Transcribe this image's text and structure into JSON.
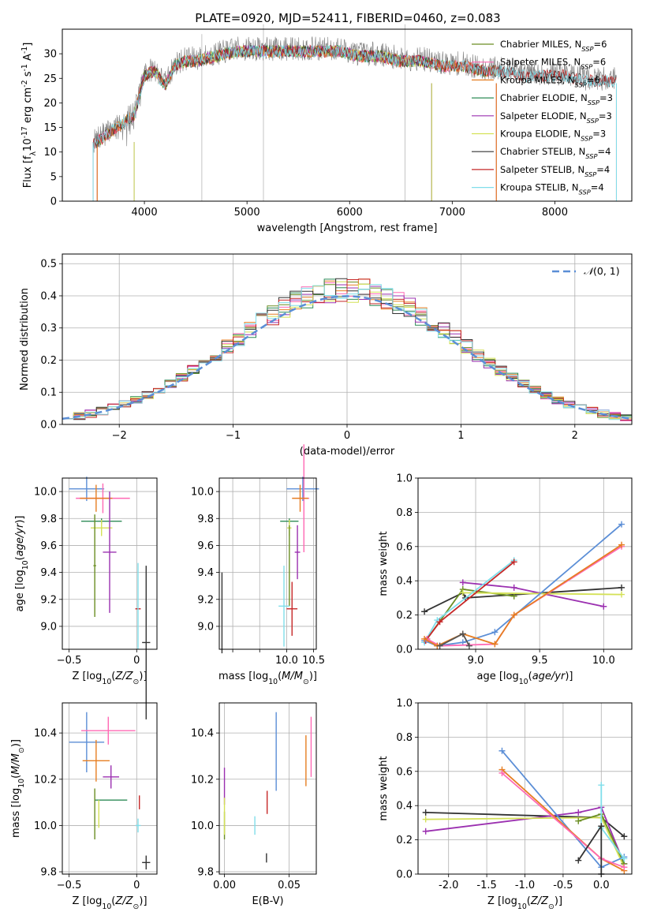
{
  "figure": {
    "title": "PLATE=0920, MJD=52411, FIBERID=0460, z=0.083"
  },
  "chart_data": [
    {
      "id": "spectrum",
      "type": "line",
      "xlabel": "wavelength [Angstrom, rest frame]",
      "ylabel": "Flux [f$_\\lambda$10$^{-17}$ erg cm$^{-2}$ s$^{-1}$ A$^{-1}$]",
      "ylabel_parts": [
        "Flux [f",
        "λ",
        "10",
        "−17",
        " erg cm",
        "−2",
        " s",
        "−1",
        " A",
        "−1",
        "]"
      ],
      "xlim": [
        3200,
        8750
      ],
      "ylim": [
        0,
        35
      ],
      "xticks": [
        4000,
        5000,
        6000,
        7000,
        8000
      ],
      "yticks": [
        0,
        5,
        10,
        15,
        20,
        25,
        30
      ],
      "grid": false,
      "legend_position": "upper right",
      "data_x": [
        3500,
        3700,
        3900,
        4000,
        4100,
        4200,
        4300,
        4400,
        4500,
        4700,
        4900,
        5100,
        5300,
        5500,
        5700,
        5900,
        6100,
        6300,
        6500,
        6700,
        6900,
        7100,
        7300,
        7500,
        7700,
        7900,
        8100,
        8300,
        8500
      ],
      "data_y": [
        12,
        15,
        18,
        26,
        27,
        24,
        28,
        29,
        29,
        30,
        31,
        31,
        31,
        31,
        31,
        31,
        30,
        30,
        29,
        29,
        28,
        28,
        27,
        27,
        26,
        26,
        26,
        25,
        25
      ],
      "models": [
        {
          "name": "Chabrier MILES, N$_{SSP}$=6",
          "label": "Chabrier MILES, N",
          "sub": "SSP",
          "suffix": "=6",
          "color": "#6b8e23",
          "start": 3540,
          "end": 7430
        },
        {
          "name": "Salpeter MILES, N$_{SSP}$=6",
          "label": "Salpeter MILES, N",
          "sub": "SSP",
          "suffix": "=6",
          "color": "#ff69b4",
          "start": 3540,
          "end": 7430
        },
        {
          "name": "Kroupa MILES, N$_{SSP}$=6",
          "label": "Kroupa MILES, N",
          "sub": "SSP",
          "suffix": "=6",
          "color": "#e67e22",
          "start": 3540,
          "end": 7430
        },
        {
          "name": "Chabrier ELODIE, N$_{SSP}$=3",
          "label": "Chabrier ELODIE, N",
          "sub": "SSP",
          "suffix": "=3",
          "color": "#2e8b57",
          "start": 3900,
          "end": 6800
        },
        {
          "name": "Salpeter ELODIE, N$_{SSP}$=3",
          "label": "Salpeter ELODIE, N",
          "sub": "SSP",
          "suffix": "=3",
          "color": "#9b30b0",
          "start": 3900,
          "end": 6800
        },
        {
          "name": "Kroupa ELODIE, N$_{SSP}$=3",
          "label": "Kroupa ELODIE, N",
          "sub": "SSP",
          "suffix": "=3",
          "color": "#d4e157",
          "start": 3900,
          "end": 6800
        },
        {
          "name": "Chabrier STELIB, N$_{SSP}$=4",
          "label": "Chabrier STELIB, N",
          "sub": "SSP",
          "suffix": "=4",
          "color": "#333333",
          "start": 3500,
          "end": 8600
        },
        {
          "name": "Salpeter STELIB, N$_{SSP}$=4",
          "label": "Salpeter STELIB, N",
          "sub": "SSP",
          "suffix": "=4",
          "color": "#c62828",
          "start": 3500,
          "end": 8600
        },
        {
          "name": "Kroupa STELIB, N$_{SSP}$=4",
          "label": "Kroupa STELIB, N",
          "sub": "SSP",
          "suffix": "=4",
          "color": "#80deea",
          "start": 3500,
          "end": 8600
        }
      ]
    },
    {
      "id": "residual_hist",
      "type": "histogram",
      "xlabel": "(data-model)/error",
      "ylabel": "Normed distribution",
      "xlim": [
        -2.5,
        2.5
      ],
      "ylim": [
        0,
        0.53
      ],
      "xticks": [
        -2,
        -1,
        0,
        1,
        2
      ],
      "yticks": [
        0.0,
        0.1,
        0.2,
        0.3,
        0.4,
        0.5
      ],
      "grid": true,
      "legend_position": "upper right",
      "reference_curve": {
        "label": "$\\mathcal{N}(0,1)$",
        "label_parts": [
          "𝒩",
          "(0, 1)"
        ],
        "color": "#5b8ed6",
        "style": "dashed",
        "mean": 0,
        "sigma": 1
      },
      "bin_width": 0.1,
      "series": [
        {
          "color": "#6b8e23"
        },
        {
          "color": "#ff69b4"
        },
        {
          "color": "#e67e22"
        },
        {
          "color": "#2e8b57"
        },
        {
          "color": "#9b30b0"
        },
        {
          "color": "#d4e157"
        },
        {
          "color": "#333333"
        },
        {
          "color": "#c62828"
        },
        {
          "color": "#80deea"
        }
      ]
    },
    {
      "id": "age_vs_Z",
      "type": "errorbar",
      "xlabel": "Z [log$_{10}$($Z/Z_\\odot$)]",
      "ylabel": "age  [log$_{10}$($age/yr$)]",
      "xlim": [
        -0.55,
        0.15
      ],
      "ylim": [
        8.83,
        10.1
      ],
      "xticks": [
        -0.5,
        0.0
      ],
      "yticks": [
        9.0,
        9.2,
        9.4,
        9.6,
        9.8,
        10.0
      ],
      "grid": true,
      "points": [
        {
          "color": "#5b8ed6",
          "x": -0.37,
          "xerr": 0.13,
          "y": 10.02,
          "yerr": 0.09
        },
        {
          "color": "#ff69b4",
          "x": -0.25,
          "xerr": 0.2,
          "y": 9.95,
          "yerr": 0.11
        },
        {
          "color": "#e67e22",
          "x": -0.3,
          "xerr": 0.12,
          "y": 9.95,
          "yerr": 0.1
        },
        {
          "color": "#2e8b57",
          "x": -0.26,
          "xerr": 0.15,
          "y": 9.78,
          "yerr": 0.02
        },
        {
          "color": "#d4e157",
          "x": -0.26,
          "xerr": 0.08,
          "y": 9.73,
          "yerr": 0.06
        },
        {
          "color": "#9b30b0",
          "x": -0.2,
          "xerr": 0.05,
          "y": 9.55,
          "yerr": 0.45
        },
        {
          "color": "#6b8e23",
          "x": -0.31,
          "xerr": 0.01,
          "y": 9.45,
          "yerr": 0.38
        },
        {
          "color": "#c62828",
          "x": 0.01,
          "xerr": 0.02,
          "y": 9.13,
          "yerr": 0.0
        },
        {
          "color": "#80deea",
          "x": 0.01,
          "xerr": 0.0,
          "y": 9.15,
          "yerr": 0.32
        },
        {
          "color": "#333333",
          "x": 0.07,
          "xerr": 0.03,
          "y": 8.88,
          "yerr": 0.57
        }
      ]
    },
    {
      "id": "age_vs_mass",
      "type": "errorbar",
      "xlabel": "mass [log$_{10}$($M/M_\\odot$)]",
      "xlim": [
        8.75,
        10.55
      ],
      "ylim": [
        8.83,
        10.1
      ],
      "xticks": [
        9.0,
        9.5,
        10.0,
        10.5
      ],
      "xtick_labels": [
        "",
        "",
        "10.0",
        "10.5"
      ],
      "yticks": [
        9.0,
        9.2,
        9.4,
        9.6,
        9.8,
        10.0
      ],
      "grid": true,
      "points": [
        {
          "color": "#5b8ed6",
          "x": 10.3,
          "xerr": 0.3,
          "y": 10.02,
          "yerr": 0.09
        },
        {
          "color": "#ff69b4",
          "x": 10.32,
          "xerr": 0.1,
          "y": 9.95,
          "yerr": 0.4
        },
        {
          "color": "#e67e22",
          "x": 10.25,
          "xerr": 0.15,
          "y": 9.95,
          "yerr": 0.1
        },
        {
          "color": "#2e8b57",
          "x": 10.05,
          "xerr": 0.17,
          "y": 9.78,
          "yerr": 0.02
        },
        {
          "color": "#d4e157",
          "x": 10.05,
          "xerr": 0.04,
          "y": 9.73,
          "yerr": 0.06
        },
        {
          "color": "#9b30b0",
          "x": 10.2,
          "xerr": 0.05,
          "y": 9.55,
          "yerr": 0.2
        },
        {
          "color": "#6b8e23",
          "x": 10.05,
          "xerr": 0.0,
          "y": 9.45,
          "yerr": 0.3
        },
        {
          "color": "#c62828",
          "x": 10.1,
          "xerr": 0.1,
          "y": 9.13,
          "yerr": 0.2
        },
        {
          "color": "#80deea",
          "x": 9.95,
          "xerr": 0.1,
          "y": 9.15,
          "yerr": 0.3
        },
        {
          "color": "#333333",
          "x": 8.8,
          "xerr": 0.0,
          "y": 9.1,
          "yerr": 0.3
        }
      ]
    },
    {
      "id": "weight_vs_age",
      "type": "line",
      "xlabel": "age  [log$_{10}$($age/yr$)]",
      "ylabel": "mass weight",
      "xlim": [
        8.55,
        10.22
      ],
      "ylim": [
        0,
        1
      ],
      "xticks": [
        9.0,
        9.5,
        10.0
      ],
      "yticks": [
        0.0,
        0.2,
        0.4,
        0.6,
        0.8,
        1.0
      ],
      "grid": true,
      "series": [
        {
          "color": "#333333",
          "x": [
            8.6,
            8.9,
            8.92,
            10.14
          ],
          "y": [
            0.22,
            0.33,
            0.3,
            0.36
          ]
        },
        {
          "color": "#6b8e23",
          "x": [
            8.62,
            8.9,
            9.3
          ],
          "y": [
            0.06,
            0.35,
            0.31
          ]
        },
        {
          "color": "#9b30b0",
          "x": [
            8.9,
            9.3,
            10.0
          ],
          "y": [
            0.39,
            0.36,
            0.25
          ]
        },
        {
          "color": "#d4e157",
          "x": [
            8.9,
            10.14
          ],
          "y": [
            0.33,
            0.32
          ]
        },
        {
          "color": "#80deea",
          "x": [
            8.6,
            8.7,
            9.3
          ],
          "y": [
            0.04,
            0.17,
            0.52
          ]
        },
        {
          "color": "#c62828",
          "x": [
            8.61,
            8.72,
            9.3
          ],
          "y": [
            0.05,
            0.16,
            0.51
          ]
        },
        {
          "color": "#5b8ed6",
          "x": [
            8.6,
            8.7,
            8.9,
            9.15,
            10.14
          ],
          "y": [
            0.05,
            0.02,
            0.04,
            0.1,
            0.73
          ]
        },
        {
          "color": "#ff69b4",
          "x": [
            8.62,
            8.72,
            9.15,
            9.3,
            10.14
          ],
          "y": [
            0.06,
            0.02,
            0.03,
            0.2,
            0.6
          ]
        },
        {
          "color": "#e67e22",
          "x": [
            8.6,
            8.7,
            8.9,
            9.15,
            9.3,
            10.14
          ],
          "y": [
            0.06,
            0.02,
            0.09,
            0.03,
            0.2,
            0.61
          ]
        },
        {
          "color": "#555555",
          "x": [
            8.72,
            8.9,
            8.95
          ],
          "y": [
            0.02,
            0.09,
            0.02
          ]
        }
      ]
    },
    {
      "id": "mass_vs_Z",
      "type": "errorbar",
      "xlabel": "Z [log$_{10}$($Z/Z_\\odot$)]",
      "ylabel": "mass [log$_{10}$($M/M_\\odot$)]",
      "xlim": [
        -0.55,
        0.15
      ],
      "ylim": [
        9.79,
        10.53
      ],
      "xticks": [
        -0.5,
        0.0
      ],
      "yticks": [
        9.8,
        10.0,
        10.2,
        10.4
      ],
      "grid": true,
      "points": [
        {
          "color": "#5b8ed6",
          "x": -0.37,
          "xerr": 0.13,
          "y": 10.36,
          "yerr": 0.13
        },
        {
          "color": "#ff69b4",
          "x": -0.21,
          "xerr": 0.2,
          "y": 10.41,
          "yerr": 0.06
        },
        {
          "color": "#e67e22",
          "x": -0.3,
          "xerr": 0.1,
          "y": 10.28,
          "yerr": 0.09
        },
        {
          "color": "#9b30b0",
          "x": -0.19,
          "xerr": 0.06,
          "y": 10.21,
          "yerr": 0.05
        },
        {
          "color": "#2e8b57",
          "x": -0.19,
          "xerr": 0.12,
          "y": 10.11,
          "yerr": 0.0
        },
        {
          "color": "#6b8e23",
          "x": -0.31,
          "xerr": 0.0,
          "y": 10.05,
          "yerr": 0.11
        },
        {
          "color": "#d4e157",
          "x": -0.28,
          "xerr": 0.0,
          "y": 10.05,
          "yerr": 0.06
        },
        {
          "color": "#c62828",
          "x": 0.02,
          "xerr": 0.0,
          "y": 10.1,
          "yerr": 0.03
        },
        {
          "color": "#80deea",
          "x": 0.01,
          "xerr": 0.02,
          "y": 10.0,
          "yerr": 0.03
        },
        {
          "color": "#333333",
          "x": 0.07,
          "xerr": 0.03,
          "y": 9.84,
          "yerr": 0.03
        }
      ]
    },
    {
      "id": "mass_vs_ebv",
      "type": "errorbar",
      "xlabel": "E(B-V)",
      "xlim": [
        -0.004,
        0.071
      ],
      "ylim": [
        9.79,
        10.53
      ],
      "xticks": [
        0.0,
        0.05
      ],
      "xtick_labels": [
        "0.00",
        "0.05"
      ],
      "yticks": [
        9.8,
        10.0,
        10.2,
        10.4
      ],
      "grid": true,
      "points": [
        {
          "color": "#5b8ed6",
          "x": 0.04,
          "xerr": 0.0,
          "y": 10.32,
          "yerr": 0.17
        },
        {
          "color": "#ff69b4",
          "x": 0.067,
          "xerr": 0.0,
          "y": 10.34,
          "yerr": 0.13
        },
        {
          "color": "#e67e22",
          "x": 0.063,
          "xerr": 0.0,
          "y": 10.28,
          "yerr": 0.11
        },
        {
          "color": "#9b30b0",
          "x": 0.0,
          "xerr": 0.0,
          "y": 10.17,
          "yerr": 0.08
        },
        {
          "color": "#c62828",
          "x": 0.033,
          "xerr": 0.0,
          "y": 10.1,
          "yerr": 0.05
        },
        {
          "color": "#6b8e23",
          "x": 0.0,
          "xerr": 0.0,
          "y": 10.0,
          "yerr": 0.06
        },
        {
          "color": "#d4e157",
          "x": 0.0,
          "xerr": 0.0,
          "y": 10.04,
          "yerr": 0.08
        },
        {
          "color": "#80deea",
          "x": 0.0235,
          "xerr": 0.0,
          "y": 10.0,
          "yerr": 0.04
        },
        {
          "color": "#333333",
          "x": 0.0325,
          "xerr": 0.0,
          "y": 9.86,
          "yerr": 0.02
        }
      ]
    },
    {
      "id": "weight_vs_Z",
      "type": "line",
      "xlabel": "Z [log$_{10}$($Z/Z_\\odot$)]",
      "ylabel": "mass weight",
      "xlim": [
        -2.4,
        0.4
      ],
      "ylim": [
        0,
        1
      ],
      "xticks": [
        -2.0,
        -1.5,
        -1.0,
        -0.5,
        0.0
      ],
      "yticks": [
        0.0,
        0.2,
        0.4,
        0.6,
        0.8,
        1.0
      ],
      "grid": true,
      "series": [
        {
          "color": "#333333",
          "x": [
            -2.3,
            -0.0,
            0.3
          ],
          "y": [
            0.36,
            0.33,
            0.22
          ]
        },
        {
          "color": "#9b30b0",
          "x": [
            -2.3,
            -0.3,
            0.0,
            0.3
          ],
          "y": [
            0.25,
            0.36,
            0.39,
            0.06
          ]
        },
        {
          "color": "#d4e157",
          "x": [
            -2.3,
            0.0,
            0.3
          ],
          "y": [
            0.32,
            0.33,
            0.04
          ]
        },
        {
          "color": "#6b8e23",
          "x": [
            -0.3,
            0.0,
            0.3
          ],
          "y": [
            0.31,
            0.35,
            0.06
          ]
        },
        {
          "color": "#5b8ed6",
          "x": [
            -1.3,
            0.0,
            0.3
          ],
          "y": [
            0.72,
            0.04,
            0.1
          ]
        },
        {
          "color": "#e67e22",
          "x": [
            -1.3,
            0.0,
            0.3
          ],
          "y": [
            0.61,
            0.09,
            0.02
          ]
        },
        {
          "color": "#ff69b4",
          "x": [
            -1.3,
            0.0,
            0.3
          ],
          "y": [
            0.59,
            0.09,
            0.04
          ]
        },
        {
          "color": "#80deea",
          "x": [
            0.0,
            0.0,
            0.3
          ],
          "y": [
            0.52,
            0.27,
            0.09
          ]
        },
        {
          "color": "#333333",
          "x": [
            -0.3,
            0.0,
            0.0
          ],
          "y": [
            0.08,
            0.28,
            0.0
          ]
        }
      ]
    }
  ]
}
